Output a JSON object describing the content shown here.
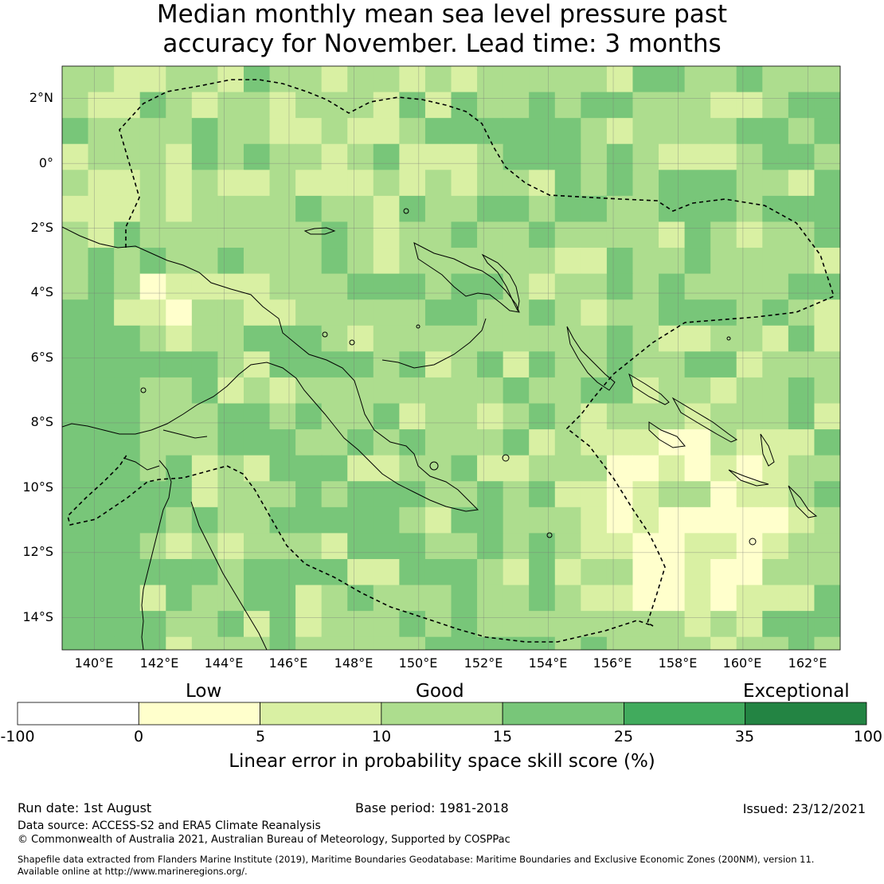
{
  "title": {
    "line1": "Median monthly mean sea level pressure past",
    "line2": "accuracy for November. Lead time: 3 months"
  },
  "map": {
    "latitude_labels": [
      "2°N",
      "0°",
      "2°S",
      "4°S",
      "6°S",
      "8°S",
      "10°S",
      "12°S",
      "14°S"
    ],
    "longitude_labels": [
      "140°E",
      "142°E",
      "144°E",
      "146°E",
      "148°E",
      "150°E",
      "152°E",
      "154°E",
      "156°E",
      "158°E",
      "160°E",
      "162°E"
    ],
    "extent": {
      "lon_min": 139.0,
      "lon_max": 163.0,
      "lat_min": -15.0,
      "lat_max": 3.0
    },
    "grid_cell_deg": 0.8,
    "boundary": "dashed maritime boundary (EEZ 200NM)"
  },
  "legend": {
    "categories": [
      "Low",
      "Good",
      "Exceptional"
    ],
    "ticks": [
      "-100",
      "0",
      "5",
      "10",
      "15",
      "25",
      "35",
      "100"
    ],
    "bins": [
      {
        "from": -100,
        "to": 0,
        "color": "#ffffff"
      },
      {
        "from": 0,
        "to": 5,
        "color": "#ffffcc"
      },
      {
        "from": 5,
        "to": 10,
        "color": "#d9f0a3"
      },
      {
        "from": 10,
        "to": 15,
        "color": "#addd8e"
      },
      {
        "from": 15,
        "to": 25,
        "color": "#78c679"
      },
      {
        "from": 25,
        "to": 35,
        "color": "#41ab5d"
      },
      {
        "from": 35,
        "to": 100,
        "color": "#238443"
      }
    ],
    "label": "Linear error in probability space skill score (%)"
  },
  "footer": {
    "run_date": "Run date: 1st August",
    "base_period": "Base period: 1981-2018",
    "issued": "Issued: 23/12/2021",
    "data_source": "Data source: ACCESS-S2 and ERA5 Climate Reanalysis",
    "copyright": "© Commonwealth of Australia 2021, Australian Bureau of Meteorology, Supported by COSPPac",
    "shapefile_line1": "Shapefile data extracted from Flanders Marine Institute (2019), Maritime Boundaries Geodatabase: Maritime Boundaries and Exclusive Economic Zones (200NM), version 11.",
    "shapefile_line2": "Available online at http://www.marineregions.org/."
  }
}
